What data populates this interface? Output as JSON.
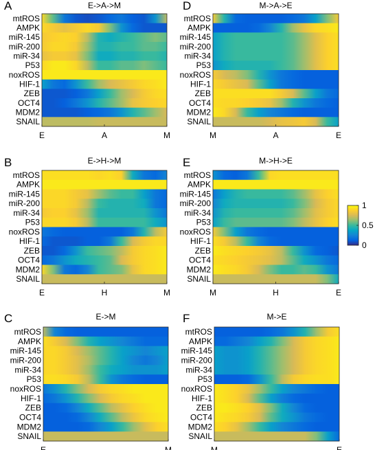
{
  "figure": {
    "colormap": [
      "#352a87",
      "#0363e1",
      "#1485d4",
      "#06a7c6",
      "#38b99e",
      "#92bf73",
      "#d9ba56",
      "#fcce2e",
      "#f9fb0e"
    ]
  },
  "colorbar": {
    "range": [
      0,
      1
    ],
    "ticks": [
      "0",
      "0.5",
      "1"
    ]
  },
  "chart_data": [
    {
      "type": "heatmap",
      "panel": "A",
      "title": "E->A->M",
      "rows": [
        "mtROS",
        "AMPK",
        "miR-145",
        "miR-200",
        "miR-34",
        "P53",
        "noxROS",
        "HIF-1",
        "ZEB",
        "OCT4",
        "MDM2",
        "SNAIL"
      ],
      "xticks": [
        "E",
        "A",
        "M"
      ],
      "values": [
        [
          0.9,
          0.55,
          0.2,
          0.1,
          0.08,
          0.1,
          0.15,
          0.2,
          0.12,
          0.1,
          0.3,
          0.7
        ],
        [
          0.9,
          0.85,
          0.8,
          0.85,
          0.9,
          0.85,
          0.6,
          0.3,
          0.15,
          0.1,
          0.1,
          0.1
        ],
        [
          0.85,
          0.88,
          0.9,
          0.88,
          0.7,
          0.45,
          0.4,
          0.45,
          0.5,
          0.55,
          0.6,
          0.55
        ],
        [
          0.85,
          0.9,
          0.9,
          0.85,
          0.65,
          0.45,
          0.45,
          0.5,
          0.5,
          0.55,
          0.55,
          0.5
        ],
        [
          0.8,
          0.85,
          0.85,
          0.8,
          0.6,
          0.4,
          0.4,
          0.45,
          0.45,
          0.5,
          0.5,
          0.45
        ],
        [
          0.9,
          0.95,
          0.95,
          0.9,
          0.7,
          0.5,
          0.5,
          0.55,
          0.55,
          0.6,
          0.55,
          0.5
        ],
        [
          0.95,
          0.95,
          0.95,
          0.95,
          0.95,
          0.95,
          0.95,
          0.95,
          0.95,
          0.95,
          0.95,
          0.95
        ],
        [
          0.35,
          0.2,
          0.15,
          0.3,
          0.5,
          0.65,
          0.75,
          0.8,
          0.85,
          0.9,
          0.92,
          0.95
        ],
        [
          0.1,
          0.1,
          0.1,
          0.12,
          0.2,
          0.35,
          0.5,
          0.65,
          0.75,
          0.85,
          0.9,
          0.92
        ],
        [
          0.1,
          0.1,
          0.12,
          0.2,
          0.3,
          0.45,
          0.55,
          0.65,
          0.8,
          0.85,
          0.88,
          0.9
        ],
        [
          0.1,
          0.1,
          0.1,
          0.1,
          0.12,
          0.15,
          0.2,
          0.3,
          0.45,
          0.55,
          0.65,
          0.75
        ],
        [
          0.7,
          0.7,
          0.7,
          0.7,
          0.7,
          0.72,
          0.72,
          0.72,
          0.72,
          0.72,
          0.72,
          0.72
        ]
      ]
    },
    {
      "type": "heatmap",
      "panel": "B",
      "title": "E->H->M",
      "rows": [
        "mtROS",
        "AMPK",
        "miR-145",
        "miR-200",
        "miR-34",
        "P53",
        "noxROS",
        "HIF-1",
        "ZEB",
        "OCT4",
        "MDM2",
        "SNAIL"
      ],
      "xticks": [
        "E",
        "H",
        "M"
      ],
      "values": [
        [
          0.92,
          0.92,
          0.92,
          0.92,
          0.92,
          0.9,
          0.92,
          0.88,
          0.4,
          0.2,
          0.15,
          0.25
        ],
        [
          0.95,
          0.95,
          0.95,
          0.95,
          0.95,
          0.95,
          0.95,
          0.95,
          0.95,
          0.95,
          0.95,
          0.95
        ],
        [
          0.9,
          0.9,
          0.9,
          0.85,
          0.8,
          0.65,
          0.55,
          0.5,
          0.5,
          0.35,
          0.2,
          0.15
        ],
        [
          0.9,
          0.9,
          0.9,
          0.85,
          0.7,
          0.5,
          0.45,
          0.45,
          0.45,
          0.4,
          0.2,
          0.15
        ],
        [
          0.85,
          0.88,
          0.88,
          0.8,
          0.65,
          0.45,
          0.45,
          0.45,
          0.45,
          0.45,
          0.3,
          0.2
        ],
        [
          0.9,
          0.9,
          0.9,
          0.85,
          0.7,
          0.5,
          0.5,
          0.5,
          0.5,
          0.5,
          0.4,
          0.3
        ],
        [
          0.2,
          0.15,
          0.12,
          0.12,
          0.12,
          0.12,
          0.12,
          0.12,
          0.2,
          0.45,
          0.7,
          0.85
        ],
        [
          0.15,
          0.1,
          0.1,
          0.1,
          0.12,
          0.12,
          0.2,
          0.5,
          0.75,
          0.85,
          0.9,
          0.9
        ],
        [
          0.1,
          0.1,
          0.15,
          0.3,
          0.5,
          0.55,
          0.6,
          0.7,
          0.85,
          0.9,
          0.92,
          0.95
        ],
        [
          0.15,
          0.2,
          0.3,
          0.4,
          0.45,
          0.5,
          0.55,
          0.75,
          0.85,
          0.9,
          0.92,
          0.95
        ],
        [
          0.9,
          0.6,
          0.2,
          0.15,
          0.25,
          0.5,
          0.55,
          0.6,
          0.8,
          0.9,
          0.92,
          0.95
        ],
        [
          0.72,
          0.72,
          0.72,
          0.72,
          0.72,
          0.72,
          0.72,
          0.72,
          0.72,
          0.72,
          0.72,
          0.72
        ]
      ]
    },
    {
      "type": "heatmap",
      "panel": "C",
      "title": "E->M",
      "rows": [
        "mtROS",
        "AMPK",
        "miR-145",
        "miR-200",
        "miR-34",
        "P53",
        "noxROS",
        "HIF-1",
        "ZEB",
        "OCT4",
        "MDM2",
        "SNAIL"
      ],
      "xticks": [
        "E",
        "M"
      ],
      "values": [
        [
          0.7,
          0.25,
          0.15,
          0.12,
          0.12,
          0.12,
          0.12,
          0.12,
          0.12,
          0.12,
          0.12,
          0.12
        ],
        [
          0.92,
          0.85,
          0.75,
          0.6,
          0.45,
          0.35,
          0.3,
          0.25,
          0.2,
          0.15,
          0.15,
          0.15
        ],
        [
          0.9,
          0.9,
          0.85,
          0.75,
          0.65,
          0.55,
          0.45,
          0.35,
          0.3,
          0.25,
          0.3,
          0.35
        ],
        [
          0.9,
          0.9,
          0.85,
          0.78,
          0.68,
          0.55,
          0.45,
          0.35,
          0.25,
          0.2,
          0.25,
          0.35
        ],
        [
          0.9,
          0.9,
          0.85,
          0.78,
          0.65,
          0.5,
          0.4,
          0.35,
          0.3,
          0.3,
          0.3,
          0.35
        ],
        [
          0.92,
          0.92,
          0.9,
          0.85,
          0.7,
          0.5,
          0.3,
          0.2,
          0.15,
          0.12,
          0.12,
          0.12
        ],
        [
          0.2,
          0.3,
          0.45,
          0.6,
          0.75,
          0.85,
          0.9,
          0.92,
          0.95,
          0.95,
          0.95,
          0.95
        ],
        [
          0.15,
          0.2,
          0.3,
          0.45,
          0.6,
          0.75,
          0.85,
          0.9,
          0.92,
          0.95,
          0.95,
          0.95
        ],
        [
          0.12,
          0.12,
          0.15,
          0.25,
          0.4,
          0.55,
          0.7,
          0.8,
          0.88,
          0.92,
          0.95,
          0.95
        ],
        [
          0.12,
          0.12,
          0.12,
          0.15,
          0.25,
          0.4,
          0.55,
          0.7,
          0.82,
          0.9,
          0.93,
          0.95
        ],
        [
          0.12,
          0.12,
          0.12,
          0.12,
          0.15,
          0.25,
          0.35,
          0.5,
          0.65,
          0.78,
          0.88,
          0.92
        ],
        [
          0.72,
          0.72,
          0.72,
          0.72,
          0.72,
          0.72,
          0.72,
          0.72,
          0.72,
          0.72,
          0.72,
          0.72
        ]
      ]
    },
    {
      "type": "heatmap",
      "panel": "D",
      "title": "M->A->E",
      "rows": [
        "mtROS",
        "AMPK",
        "miR-145",
        "miR-200",
        "miR-34",
        "P53",
        "noxROS",
        "HIF-1",
        "ZEB",
        "OCT4",
        "MDM2",
        "SNAIL"
      ],
      "xticks": [
        "M",
        "A",
        "E"
      ],
      "values": [
        [
          0.85,
          0.45,
          0.15,
          0.12,
          0.12,
          0.12,
          0.12,
          0.15,
          0.2,
          0.35,
          0.6,
          0.85
        ],
        [
          0.12,
          0.12,
          0.12,
          0.12,
          0.15,
          0.25,
          0.45,
          0.65,
          0.8,
          0.9,
          0.92,
          0.95
        ],
        [
          0.35,
          0.45,
          0.5,
          0.5,
          0.5,
          0.5,
          0.5,
          0.55,
          0.65,
          0.78,
          0.88,
          0.92
        ],
        [
          0.35,
          0.45,
          0.5,
          0.5,
          0.5,
          0.5,
          0.5,
          0.55,
          0.65,
          0.78,
          0.88,
          0.92
        ],
        [
          0.35,
          0.45,
          0.5,
          0.5,
          0.5,
          0.5,
          0.5,
          0.55,
          0.65,
          0.78,
          0.88,
          0.92
        ],
        [
          0.3,
          0.4,
          0.45,
          0.45,
          0.45,
          0.45,
          0.5,
          0.55,
          0.65,
          0.78,
          0.88,
          0.92
        ],
        [
          0.85,
          0.75,
          0.7,
          0.6,
          0.45,
          0.3,
          0.2,
          0.15,
          0.12,
          0.12,
          0.12,
          0.12
        ],
        [
          0.9,
          0.85,
          0.8,
          0.75,
          0.55,
          0.35,
          0.2,
          0.15,
          0.12,
          0.12,
          0.12,
          0.12
        ],
        [
          0.92,
          0.92,
          0.92,
          0.92,
          0.92,
          0.92,
          0.85,
          0.75,
          0.55,
          0.35,
          0.2,
          0.15
        ],
        [
          0.92,
          0.9,
          0.9,
          0.88,
          0.85,
          0.8,
          0.65,
          0.45,
          0.3,
          0.2,
          0.15,
          0.12
        ],
        [
          0.95,
          0.9,
          0.75,
          0.5,
          0.35,
          0.25,
          0.2,
          0.15,
          0.12,
          0.12,
          0.12,
          0.12
        ],
        [
          0.72,
          0.72,
          0.72,
          0.72,
          0.72,
          0.75,
          0.8,
          0.82,
          0.85,
          0.75,
          0.5,
          0.35
        ]
      ]
    },
    {
      "type": "heatmap",
      "panel": "E",
      "title": "M->H->E",
      "rows": [
        "mtROS",
        "AMPK",
        "miR-145",
        "miR-200",
        "miR-34",
        "P53",
        "noxROS",
        "HIF-1",
        "ZEB",
        "OCT4",
        "MDM2",
        "SNAIL"
      ],
      "xticks": [
        "M",
        "H",
        "E"
      ],
      "values": [
        [
          0.3,
          0.15,
          0.12,
          0.2,
          0.5,
          0.9,
          0.92,
          0.92,
          0.92,
          0.92,
          0.92,
          0.92
        ],
        [
          0.95,
          0.95,
          0.95,
          0.95,
          0.95,
          0.95,
          0.95,
          0.95,
          0.95,
          0.95,
          0.95,
          0.95
        ],
        [
          0.2,
          0.35,
          0.45,
          0.5,
          0.5,
          0.5,
          0.5,
          0.55,
          0.65,
          0.8,
          0.88,
          0.92
        ],
        [
          0.25,
          0.4,
          0.45,
          0.45,
          0.45,
          0.45,
          0.45,
          0.5,
          0.6,
          0.75,
          0.85,
          0.9
        ],
        [
          0.3,
          0.45,
          0.5,
          0.5,
          0.5,
          0.5,
          0.5,
          0.55,
          0.65,
          0.78,
          0.85,
          0.9
        ],
        [
          0.35,
          0.5,
          0.55,
          0.55,
          0.55,
          0.55,
          0.55,
          0.6,
          0.7,
          0.8,
          0.88,
          0.92
        ],
        [
          0.85,
          0.6,
          0.35,
          0.2,
          0.15,
          0.12,
          0.12,
          0.12,
          0.12,
          0.12,
          0.12,
          0.12
        ],
        [
          0.92,
          0.85,
          0.7,
          0.5,
          0.25,
          0.15,
          0.12,
          0.12,
          0.12,
          0.12,
          0.12,
          0.12
        ],
        [
          0.95,
          0.92,
          0.9,
          0.88,
          0.85,
          0.8,
          0.7,
          0.5,
          0.3,
          0.15,
          0.12,
          0.1
        ],
        [
          0.92,
          0.9,
          0.88,
          0.85,
          0.82,
          0.78,
          0.7,
          0.55,
          0.4,
          0.3,
          0.2,
          0.15
        ],
        [
          0.95,
          0.92,
          0.9,
          0.85,
          0.75,
          0.6,
          0.5,
          0.5,
          0.55,
          0.5,
          0.3,
          0.2
        ],
        [
          0.72,
          0.72,
          0.72,
          0.72,
          0.72,
          0.72,
          0.72,
          0.72,
          0.72,
          0.72,
          0.6,
          0.4
        ]
      ]
    },
    {
      "type": "heatmap",
      "panel": "F",
      "title": "M->E",
      "rows": [
        "mtROS",
        "AMPK",
        "miR-145",
        "miR-200",
        "miR-34",
        "P53",
        "noxROS",
        "HIF-1",
        "ZEB",
        "OCT4",
        "MDM2",
        "SNAIL"
      ],
      "xticks": [
        "M",
        "E"
      ],
      "values": [
        [
          0.12,
          0.12,
          0.12,
          0.12,
          0.12,
          0.15,
          0.2,
          0.3,
          0.45,
          0.65,
          0.85,
          0.92
        ],
        [
          0.15,
          0.15,
          0.2,
          0.25,
          0.35,
          0.45,
          0.6,
          0.75,
          0.85,
          0.9,
          0.92,
          0.95
        ],
        [
          0.35,
          0.3,
          0.3,
          0.35,
          0.45,
          0.55,
          0.65,
          0.75,
          0.85,
          0.9,
          0.92,
          0.95
        ],
        [
          0.35,
          0.3,
          0.3,
          0.35,
          0.45,
          0.55,
          0.65,
          0.75,
          0.85,
          0.9,
          0.92,
          0.95
        ],
        [
          0.35,
          0.3,
          0.3,
          0.35,
          0.45,
          0.55,
          0.65,
          0.75,
          0.85,
          0.9,
          0.92,
          0.95
        ],
        [
          0.12,
          0.12,
          0.12,
          0.15,
          0.3,
          0.5,
          0.7,
          0.85,
          0.9,
          0.92,
          0.92,
          0.95
        ],
        [
          0.95,
          0.92,
          0.88,
          0.8,
          0.65,
          0.5,
          0.35,
          0.25,
          0.2,
          0.15,
          0.12,
          0.12
        ],
        [
          0.95,
          0.92,
          0.88,
          0.75,
          0.55,
          0.35,
          0.22,
          0.15,
          0.12,
          0.12,
          0.12,
          0.12
        ],
        [
          0.95,
          0.95,
          0.92,
          0.88,
          0.78,
          0.6,
          0.4,
          0.25,
          0.15,
          0.12,
          0.12,
          0.12
        ],
        [
          0.95,
          0.92,
          0.9,
          0.85,
          0.75,
          0.55,
          0.4,
          0.3,
          0.2,
          0.15,
          0.12,
          0.12
        ],
        [
          0.92,
          0.88,
          0.8,
          0.65,
          0.5,
          0.35,
          0.25,
          0.2,
          0.15,
          0.12,
          0.12,
          0.12
        ],
        [
          0.72,
          0.72,
          0.72,
          0.72,
          0.72,
          0.72,
          0.72,
          0.72,
          0.72,
          0.6,
          0.35,
          0.15
        ]
      ]
    }
  ]
}
